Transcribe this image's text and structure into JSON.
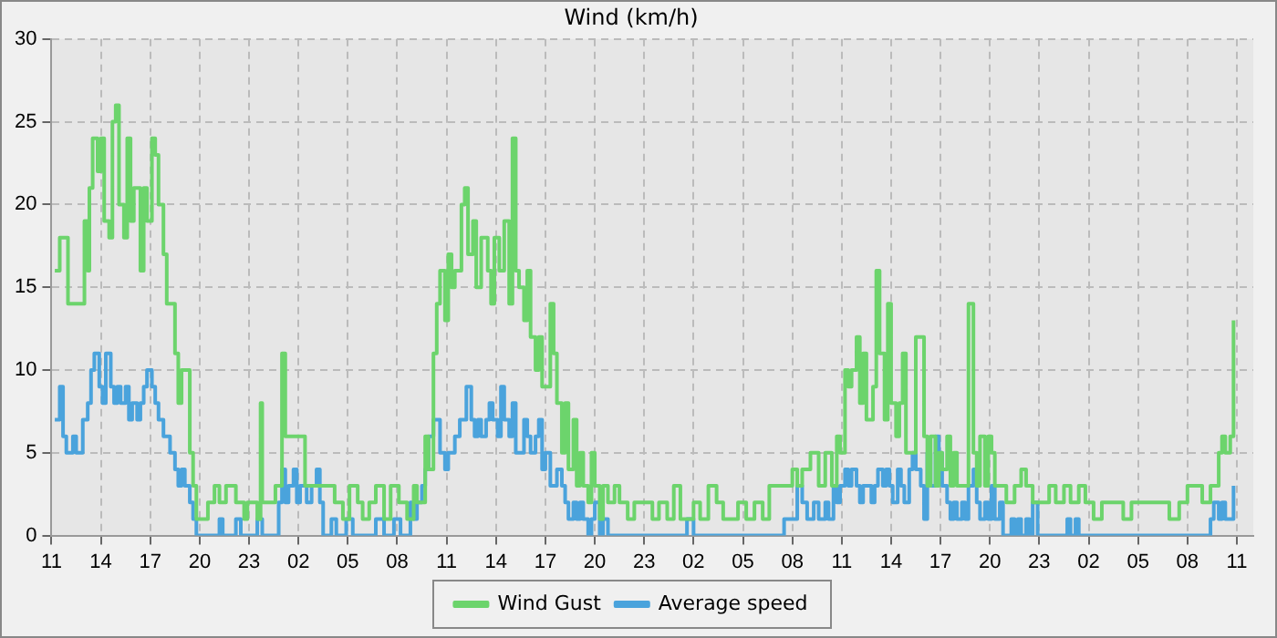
{
  "chart_data": {
    "type": "step",
    "title": "Wind (km/h)",
    "xlim": [
      "--01-01T11:00",
      "--01-04T12:00"
    ],
    "ylim": [
      0,
      30
    ],
    "xticks": [
      {
        "value": "--01-01T11:00",
        "label": "11"
      },
      {
        "value": "--01-01T14:00",
        "label": "14"
      },
      {
        "value": "--01-01T17:00",
        "label": "17"
      },
      {
        "value": "--01-01T20:00",
        "label": "20"
      },
      {
        "value": "--01-01T23:00",
        "label": "23"
      },
      {
        "value": "--01-02T02:00",
        "label": "02"
      },
      {
        "value": "--01-02T05:00",
        "label": "05"
      },
      {
        "value": "--01-02T08:00",
        "label": "08"
      },
      {
        "value": "--01-02T11:00",
        "label": "11"
      },
      {
        "value": "--01-02T14:00",
        "label": "14"
      },
      {
        "value": "--01-02T17:00",
        "label": "17"
      },
      {
        "value": "--01-02T20:00",
        "label": "20"
      },
      {
        "value": "--01-02T23:00",
        "label": "23"
      },
      {
        "value": "--01-03T02:00",
        "label": "02"
      },
      {
        "value": "--01-03T05:00",
        "label": "05"
      },
      {
        "value": "--01-03T08:00",
        "label": "08"
      },
      {
        "value": "--01-03T11:00",
        "label": "11"
      },
      {
        "value": "--01-03T14:00",
        "label": "14"
      },
      {
        "value": "--01-03T17:00",
        "label": "17"
      },
      {
        "value": "--01-03T20:00",
        "label": "20"
      },
      {
        "value": "--01-03T23:00",
        "label": "23"
      },
      {
        "value": "--01-04T02:00",
        "label": "02"
      },
      {
        "value": "--01-04T05:00",
        "label": "05"
      },
      {
        "value": "--01-04T08:00",
        "label": "08"
      },
      {
        "value": "--01-04T11:00",
        "label": "11"
      }
    ],
    "yticks": [
      0,
      5,
      10,
      15,
      20,
      25,
      30
    ],
    "grid": true,
    "legend": "bottom",
    "marker": "none",
    "line_style": "solid",
    "series": [
      {
        "name": "Wind Gust",
        "color": "#6cd46c",
        "x": [
          "--01-01T11:12",
          "--01-01T11:30",
          "--01-01T12:00",
          "--01-01T12:42",
          "--01-01T13:00",
          "--01-01T13:12",
          "--01-01T13:18",
          "--01-01T13:30",
          "--01-01T13:48",
          "--01-01T14:00",
          "--01-01T14:12",
          "--01-01T14:30",
          "--01-01T14:42",
          "--01-01T14:54",
          "--01-01T15:06",
          "--01-01T15:24",
          "--01-01T15:36",
          "--01-01T15:48",
          "--01-01T16:00",
          "--01-01T16:24",
          "--01-01T16:36",
          "--01-01T16:48",
          "--01-01T17:06",
          "--01-01T17:18",
          "--01-01T17:30",
          "--01-01T17:48",
          "--01-01T18:00",
          "--01-01T18:12",
          "--01-01T18:30",
          "--01-01T18:42",
          "--01-01T18:54",
          "--01-01T19:06",
          "--01-01T19:24",
          "--01-01T19:36",
          "--01-01T19:48",
          "--01-01T20:12",
          "--01-01T20:30",
          "--01-01T20:54",
          "--01-01T21:12",
          "--01-01T21:36",
          "--01-01T21:54",
          "--01-01T22:12",
          "--01-01T22:42",
          "--01-01T22:54",
          "--01-01T23:30",
          "--01-01T23:42",
          "--01-01T23:48",
          "--01-02T00:12",
          "--01-02T00:36",
          "--01-02T01:00",
          "--01-02T01:12",
          "--01-02T01:36",
          "--01-02T02:06",
          "--01-02T02:24",
          "--01-02T02:48",
          "--01-02T03:18",
          "--01-02T03:54",
          "--01-02T04:12",
          "--01-02T04:42",
          "--01-02T05:06",
          "--01-02T05:36",
          "--01-02T05:54",
          "--01-02T06:18",
          "--01-02T06:42",
          "--01-02T07:12",
          "--01-02T07:36",
          "--01-02T08:06",
          "--01-02T08:36",
          "--01-02T09:00",
          "--01-02T09:12",
          "--01-02T09:42",
          "--01-02T09:54",
          "--01-02T10:12",
          "--01-02T10:24",
          "--01-02T10:36",
          "--01-02T10:54",
          "--01-02T11:06",
          "--01-02T11:18",
          "--01-02T11:30",
          "--01-02T11:54",
          "--01-02T12:06",
          "--01-02T12:18",
          "--01-02T12:36",
          "--01-02T12:48",
          "--01-02T13:06",
          "--01-02T13:30",
          "--01-02T13:42",
          "--01-02T13:54",
          "--01-02T14:12",
          "--01-02T14:30",
          "--01-02T14:48",
          "--01-02T15:00",
          "--01-02T15:12",
          "--01-02T15:24",
          "--01-02T15:42",
          "--01-02T15:54",
          "--01-02T16:06",
          "--01-02T16:24",
          "--01-02T16:36",
          "--01-02T16:48",
          "--01-02T17:00",
          "--01-02T17:18",
          "--01-02T17:30",
          "--01-02T17:42",
          "--01-02T18:00",
          "--01-02T18:12",
          "--01-02T18:24",
          "--01-02T18:42",
          "--01-02T18:54",
          "--01-02T19:06",
          "--01-02T19:18",
          "--01-02T19:36",
          "--01-02T19:48",
          "--01-02T20:00",
          "--01-02T20:18",
          "--01-02T20:30",
          "--01-02T20:48",
          "--01-02T21:12",
          "--01-02T21:30",
          "--01-02T22:00",
          "--01-02T22:24",
          "--01-02T23:00",
          "--01-02T23:30",
          "--01-02T23:54",
          "--01-03T00:24",
          "--01-03T00:48",
          "--01-03T01:12",
          "--01-03T01:30",
          "--01-03T02:00",
          "--01-03T02:24",
          "--01-03T02:54",
          "--01-03T03:24",
          "--01-03T03:48",
          "--01-03T04:18",
          "--01-03T04:42",
          "--01-03T05:12",
          "--01-03T05:42",
          "--01-03T06:12",
          "--01-03T06:36",
          "--01-03T07:00",
          "--01-03T07:30",
          "--01-03T08:00",
          "--01-03T08:18",
          "--01-03T08:36",
          "--01-03T09:06",
          "--01-03T09:36",
          "--01-03T10:00",
          "--01-03T10:24",
          "--01-03T10:42",
          "--01-03T10:54",
          "--01-03T11:12",
          "--01-03T11:24",
          "--01-03T11:36",
          "--01-03T11:54",
          "--01-03T12:06",
          "--01-03T12:18",
          "--01-03T12:30",
          "--01-03T12:54",
          "--01-03T13:06",
          "--01-03T13:18",
          "--01-03T13:36",
          "--01-03T13:48",
          "--01-03T14:00",
          "--01-03T14:18",
          "--01-03T14:30",
          "--01-03T14:42",
          "--01-03T14:54",
          "--01-03T15:12",
          "--01-03T15:30",
          "--01-03T15:48",
          "--01-03T16:00",
          "--01-03T16:12",
          "--01-03T16:24",
          "--01-03T16:42",
          "--01-03T16:54",
          "--01-03T17:06",
          "--01-03T17:24",
          "--01-03T17:36",
          "--01-03T17:48",
          "--01-03T18:00",
          "--01-03T18:18",
          "--01-03T18:30",
          "--01-03T18:42",
          "--01-03T19:00",
          "--01-03T19:12",
          "--01-03T19:24",
          "--01-03T19:42",
          "--01-03T19:54",
          "--01-03T20:06",
          "--01-03T20:18",
          "--01-03T20:36",
          "--01-03T21:00",
          "--01-03T21:30",
          "--01-03T21:54",
          "--01-03T22:12",
          "--01-03T22:36",
          "--01-03T23:06",
          "--01-03T23:36",
          "--01-04T00:00",
          "--01-04T00:30",
          "--01-04T00:54",
          "--01-04T01:24",
          "--01-04T01:48",
          "--01-04T02:18",
          "--01-04T02:48",
          "--01-04T03:12",
          "--01-04T03:42",
          "--01-04T04:06",
          "--01-04T04:36",
          "--01-04T05:18",
          "--01-04T06:00",
          "--01-04T06:24",
          "--01-04T06:54",
          "--01-04T07:30",
          "--01-04T08:00",
          "--01-04T08:30",
          "--01-04T08:54",
          "--01-04T09:24",
          "--01-04T09:54",
          "--01-04T10:06",
          "--01-04T10:18",
          "--01-04T10:36",
          "--01-04T10:48"
        ],
        "values": [
          16,
          18,
          14,
          14,
          19,
          16,
          21,
          24,
          22,
          24,
          19,
          18,
          25,
          26,
          20,
          18,
          24,
          19,
          21,
          16,
          21,
          19,
          24,
          23,
          20,
          17,
          14,
          14,
          11,
          8,
          10,
          10,
          5,
          3,
          1,
          1,
          2,
          3,
          2,
          3,
          3,
          2,
          1,
          2,
          1,
          8,
          2,
          2,
          3,
          11,
          6,
          6,
          6,
          3,
          3,
          3,
          3,
          2,
          1,
          3,
          2,
          1,
          2,
          3,
          1,
          3,
          2,
          1,
          3,
          2,
          6,
          4,
          11,
          14,
          16,
          13,
          17,
          15,
          16,
          20,
          21,
          17,
          19,
          15,
          18,
          16,
          14,
          18,
          16,
          19,
          14,
          24,
          16,
          15,
          13,
          16,
          12,
          10,
          12,
          9,
          9,
          14,
          11,
          8,
          5,
          8,
          4,
          7,
          3,
          5,
          3,
          2,
          5,
          3,
          1,
          3,
          2,
          3,
          2,
          1,
          2,
          2,
          1,
          2,
          1,
          3,
          1,
          1,
          2,
          1,
          3,
          2,
          1,
          1,
          2,
          1,
          2,
          1,
          3,
          3,
          3,
          4,
          3,
          4,
          5,
          3,
          5,
          3,
          6,
          5,
          10,
          9,
          10,
          12,
          8,
          11,
          7,
          9,
          16,
          11,
          7,
          14,
          8,
          6,
          8,
          11,
          5,
          5,
          12,
          12,
          6,
          3,
          6,
          3,
          5,
          4,
          6,
          3,
          5,
          3,
          3,
          3,
          14,
          5,
          3,
          6,
          3,
          6,
          5,
          3,
          3,
          2,
          3,
          4,
          3,
          2,
          2,
          3,
          2,
          3,
          2,
          3,
          2,
          1,
          2,
          2,
          2,
          1,
          2,
          2,
          2,
          2,
          1,
          2,
          3,
          3,
          2,
          3,
          5,
          6,
          5,
          6,
          13
        ]
      },
      {
        "name": "Average speed",
        "color": "#4aa3dc",
        "x": [
          "--01-01T11:12",
          "--01-01T11:30",
          "--01-01T11:42",
          "--01-01T11:54",
          "--01-01T12:18",
          "--01-01T12:30",
          "--01-01T12:42",
          "--01-01T12:54",
          "--01-01T13:12",
          "--01-01T13:24",
          "--01-01T13:36",
          "--01-01T13:54",
          "--01-01T14:06",
          "--01-01T14:18",
          "--01-01T14:36",
          "--01-01T14:48",
          "--01-01T15:00",
          "--01-01T15:12",
          "--01-01T15:30",
          "--01-01T15:42",
          "--01-01T15:54",
          "--01-01T16:12",
          "--01-01T16:24",
          "--01-01T16:36",
          "--01-01T16:48",
          "--01-01T17:06",
          "--01-01T17:18",
          "--01-01T17:30",
          "--01-01T17:48",
          "--01-01T18:00",
          "--01-01T18:12",
          "--01-01T18:30",
          "--01-01T18:42",
          "--01-01T18:54",
          "--01-01T19:06",
          "--01-01T19:24",
          "--01-01T19:36",
          "--01-01T19:48",
          "--01-01T20:24",
          "--01-01T20:54",
          "--01-01T21:12",
          "--01-01T21:24",
          "--01-01T22:12",
          "--01-01T22:30",
          "--01-01T22:42",
          "--01-01T23:12",
          "--01-01T23:30",
          "--01-01T23:48",
          "--01-02T00:12",
          "--01-02T00:30",
          "--01-02T00:48",
          "--01-02T01:00",
          "--01-02T01:12",
          "--01-02T01:24",
          "--01-02T01:42",
          "--01-02T01:54",
          "--01-02T02:06",
          "--01-02T02:30",
          "--01-02T02:48",
          "--01-02T03:06",
          "--01-02T03:18",
          "--01-02T03:30",
          "--01-02T04:00",
          "--01-02T04:18",
          "--01-02T04:54",
          "--01-02T05:18",
          "--01-02T05:48",
          "--01-02T06:18",
          "--01-02T06:42",
          "--01-02T07:12",
          "--01-02T07:48",
          "--01-02T08:12",
          "--01-02T08:48",
          "--01-02T09:00",
          "--01-02T09:12",
          "--01-02T09:30",
          "--01-02T09:42",
          "--01-02T09:54",
          "--01-02T10:12",
          "--01-02T10:24",
          "--01-02T10:36",
          "--01-02T10:54",
          "--01-02T11:06",
          "--01-02T11:18",
          "--01-02T11:30",
          "--01-02T11:48",
          "--01-02T12:00",
          "--01-02T12:12",
          "--01-02T12:30",
          "--01-02T12:42",
          "--01-02T12:54",
          "--01-02T13:06",
          "--01-02T13:24",
          "--01-02T13:36",
          "--01-02T13:48",
          "--01-02T14:06",
          "--01-02T14:18",
          "--01-02T14:30",
          "--01-02T14:48",
          "--01-02T15:00",
          "--01-02T15:12",
          "--01-02T15:24",
          "--01-02T15:42",
          "--01-02T15:54",
          "--01-02T16:06",
          "--01-02T16:24",
          "--01-02T16:36",
          "--01-02T16:48",
          "--01-02T17:00",
          "--01-02T17:18",
          "--01-02T17:30",
          "--01-02T17:42",
          "--01-02T18:00",
          "--01-02T18:12",
          "--01-02T18:24",
          "--01-02T18:42",
          "--01-02T18:54",
          "--01-02T19:06",
          "--01-02T19:18",
          "--01-02T19:36",
          "--01-02T19:48",
          "--01-02T20:00",
          "--01-02T20:18",
          "--01-02T20:30",
          "--01-02T20:48",
          "--01-02T21:36",
          "--01-02T22:48",
          "--01-02T23:54",
          "--01-03T01:06",
          "--01-03T01:36",
          "--01-03T02:00",
          "--01-03T02:48",
          "--01-03T03:54",
          "--01-03T05:06",
          "--01-03T06:12",
          "--01-03T06:48",
          "--01-03T07:30",
          "--01-03T08:00",
          "--01-03T08:18",
          "--01-03T08:36",
          "--01-03T08:54",
          "--01-03T09:06",
          "--01-03T09:18",
          "--01-03T09:36",
          "--01-03T09:48",
          "--01-03T10:00",
          "--01-03T10:12",
          "--01-03T10:30",
          "--01-03T10:42",
          "--01-03T10:54",
          "--01-03T11:12",
          "--01-03T11:24",
          "--01-03T11:36",
          "--01-03T11:54",
          "--01-03T12:06",
          "--01-03T12:18",
          "--01-03T12:30",
          "--01-03T12:48",
          "--01-03T13:00",
          "--01-03T13:12",
          "--01-03T13:30",
          "--01-03T13:42",
          "--01-03T13:54",
          "--01-03T14:06",
          "--01-03T14:24",
          "--01-03T14:36",
          "--01-03T14:48",
          "--01-03T15:06",
          "--01-03T15:18",
          "--01-03T15:30",
          "--01-03T15:48",
          "--01-03T16:00",
          "--01-03T16:12",
          "--01-03T16:24",
          "--01-03T16:42",
          "--01-03T16:54",
          "--01-03T17:06",
          "--01-03T17:24",
          "--01-03T17:36",
          "--01-03T17:48",
          "--01-03T18:00",
          "--01-03T18:18",
          "--01-03T18:30",
          "--01-03T18:42",
          "--01-03T19:00",
          "--01-03T19:12",
          "--01-03T19:24",
          "--01-03T19:42",
          "--01-03T19:54",
          "--01-03T20:06",
          "--01-03T20:18",
          "--01-03T20:36",
          "--01-03T20:48",
          "--01-03T21:18",
          "--01-03T21:30",
          "--01-03T21:42",
          "--01-03T21:54",
          "--01-03T22:12",
          "--01-03T22:24",
          "--01-03T22:36",
          "--01-03T22:54",
          "--01-03T23:36",
          "--01-04T00:42",
          "--01-04T00:54",
          "--01-04T01:12",
          "--01-04T01:24",
          "--01-04T02:18",
          "--01-04T04:36",
          "--01-04T06:54",
          "--01-04T09:12",
          "--01-04T09:24",
          "--01-04T09:36",
          "--01-04T09:54",
          "--01-04T10:06",
          "--01-04T10:18",
          "--01-04T10:36",
          "--01-04T10:48"
        ],
        "values": [
          7,
          9,
          6,
          5,
          6,
          5,
          5,
          7,
          8,
          10,
          11,
          9,
          8,
          11,
          9,
          8,
          9,
          8,
          9,
          7,
          8,
          7,
          8,
          9,
          10,
          9,
          8,
          7,
          6,
          6,
          5,
          4,
          3,
          4,
          3,
          2,
          1,
          0,
          0,
          0,
          1,
          0,
          1,
          0,
          0,
          0,
          1,
          0,
          0,
          0,
          2,
          4,
          2,
          3,
          4,
          2,
          3,
          2,
          3,
          4,
          2,
          0,
          1,
          0,
          1,
          0,
          0,
          0,
          1,
          0,
          1,
          0,
          2,
          1,
          2,
          3,
          4,
          6,
          7,
          7,
          5,
          4,
          5,
          5,
          6,
          7,
          7,
          9,
          7,
          6,
          7,
          6,
          7,
          8,
          7,
          6,
          9,
          7,
          6,
          8,
          5,
          5,
          7,
          6,
          5,
          6,
          7,
          4,
          5,
          3,
          3,
          4,
          3,
          2,
          1,
          2,
          1,
          2,
          1,
          0,
          1,
          2,
          0,
          1,
          0,
          0,
          0,
          0,
          0,
          1,
          0,
          0,
          0,
          0,
          0,
          0,
          1,
          1,
          3,
          2,
          1,
          1,
          2,
          1,
          1,
          2,
          1,
          3,
          2,
          3,
          4,
          3,
          4,
          3,
          2,
          3,
          3,
          2,
          3,
          4,
          3,
          4,
          3,
          2,
          4,
          3,
          2,
          4,
          5,
          4,
          3,
          1,
          5,
          3,
          6,
          5,
          3,
          2,
          1,
          2,
          1,
          2,
          1,
          3,
          4,
          2,
          1,
          2,
          1,
          3,
          1,
          2,
          0,
          1,
          0,
          1,
          0,
          1,
          0,
          2,
          0,
          0,
          1,
          0,
          1,
          0,
          0,
          0,
          0,
          0,
          1,
          2,
          1,
          2,
          1,
          1,
          3
        ]
      }
    ]
  }
}
